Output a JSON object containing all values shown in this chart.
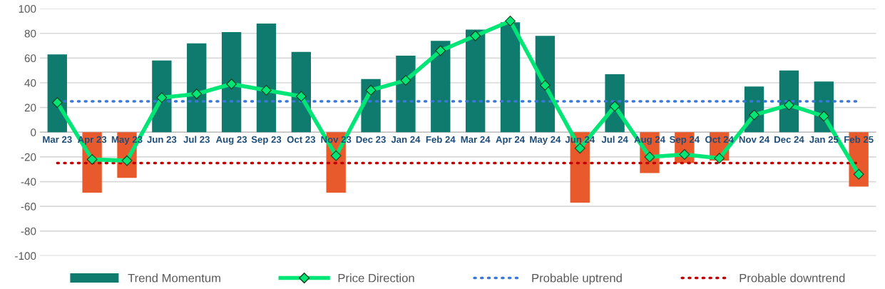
{
  "chart_data": {
    "type": "bar",
    "categories": [
      "Mar 23",
      "Apr 23",
      "May 23",
      "Jun 23",
      "Jul 23",
      "Aug 23",
      "Sep 23",
      "Oct 23",
      "Nov 23",
      "Dec 23",
      "Jan 24",
      "Feb 24",
      "Mar 24",
      "Apr 24",
      "May 24",
      "Jun 24",
      "Jul 24",
      "Aug 24",
      "Sep 24",
      "Oct 24",
      "Nov 24",
      "Dec 24",
      "Jan 25",
      "Feb 25"
    ],
    "series": [
      {
        "name": "Trend Momentum",
        "color": "#0f7b6f",
        "colors": [
          "#0f7b6f",
          "#e85a2c",
          "#e85a2c",
          "#0f7b6f",
          "#0f7b6f",
          "#0f7b6f",
          "#0f7b6f",
          "#0f7b6f",
          "#e85a2c",
          "#0f7b6f",
          "#0f7b6f",
          "#0f7b6f",
          "#0f7b6f",
          "#0f7b6f",
          "#0f7b6f",
          "#e85a2c",
          "#0f7b6f",
          "#e85a2c",
          "#e85a2c",
          "#e85a2c",
          "#0f7b6f",
          "#0f7b6f",
          "#0f7b6f",
          "#e85a2c"
        ],
        "values": [
          63,
          -49,
          -37,
          58,
          72,
          81,
          88,
          65,
          -49,
          43,
          62,
          74,
          83,
          89,
          78,
          -57,
          47,
          -33,
          -25,
          -23,
          37,
          50,
          41,
          -44
        ]
      },
      {
        "name": "Price Direction",
        "type": "line",
        "color": "#00e676",
        "marker": "diamond",
        "values": [
          24,
          -22,
          -23,
          28,
          31,
          39,
          34,
          29,
          -19,
          34,
          42,
          66,
          78,
          90,
          38,
          -13,
          21,
          -20,
          -18,
          -21,
          14,
          22,
          13,
          -34
        ]
      }
    ],
    "ref_lines": [
      {
        "axis": "y",
        "value": 25,
        "label": "Probable uptrend",
        "color": "#3a78d8",
        "line_style": "dotted"
      },
      {
        "axis": "y",
        "value": -25,
        "label": "Probable downtrend",
        "color": "#c00000",
        "line_style": "dotted"
      }
    ],
    "ylim": [
      -100,
      100
    ],
    "yticks": [
      -100,
      -80,
      -60,
      -40,
      -20,
      0,
      20,
      40,
      60,
      80,
      100
    ],
    "grid": "y",
    "legend": "bottom"
  }
}
